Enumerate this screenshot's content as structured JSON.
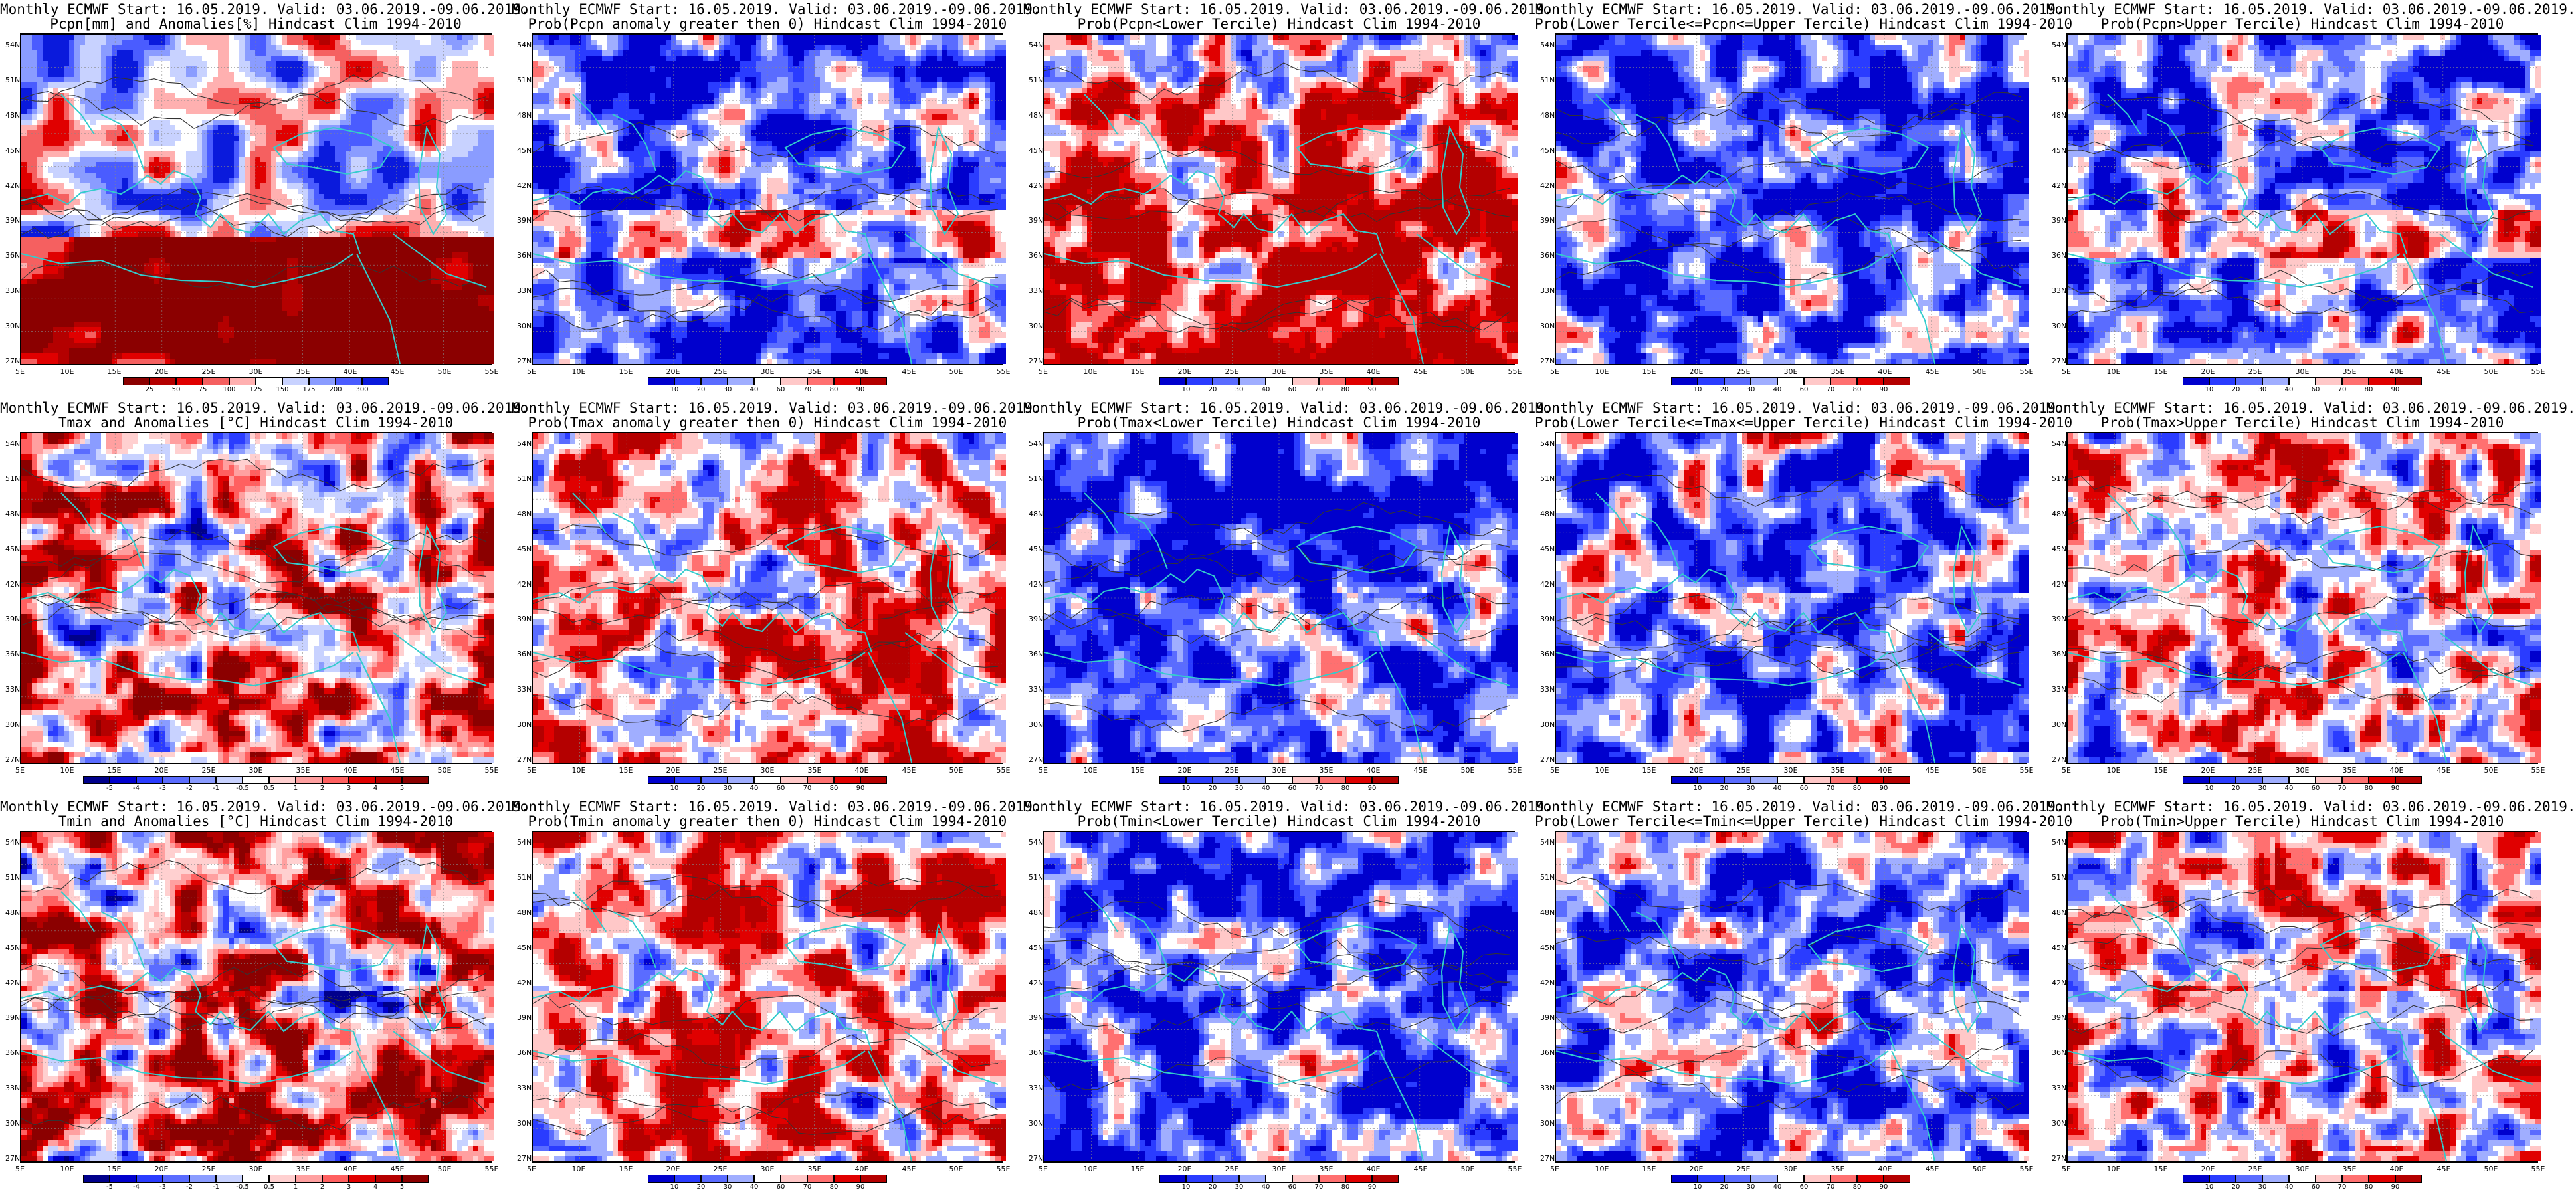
{
  "lat_labels": [
    "54N",
    "51N",
    "48N",
    "45N",
    "42N",
    "39N",
    "36N",
    "33N",
    "30N",
    "27N"
  ],
  "lon_labels": [
    "5E",
    "10E",
    "15E",
    "20E",
    "25E",
    "30E",
    "35E",
    "40E",
    "45E",
    "50E",
    "55E"
  ],
  "colorbars": {
    "pcpn_anom": {
      "ticks": [
        "25",
        "50",
        "75",
        "100",
        "125",
        "150",
        "175",
        "200",
        "300"
      ],
      "colors": [
        "#8b0000",
        "#b40000",
        "#e00000",
        "#f56060",
        "#ffb0b0",
        "#ffffff",
        "#c8d2ff",
        "#8a9cff",
        "#4a5cff",
        "#0a1adc"
      ]
    },
    "temp_anom": {
      "ticks": [
        "-5",
        "-4",
        "-3",
        "-2",
        "-1",
        "-0.5",
        "0.5",
        "1",
        "2",
        "3",
        "4",
        "5"
      ],
      "colors": [
        "#00008b",
        "#0000cd",
        "#2a3cff",
        "#5a6cff",
        "#8a9cff",
        "#c8d2ff",
        "#ffffff",
        "#ffd0d0",
        "#ffa0a0",
        "#ff6060",
        "#e00000",
        "#b40000",
        "#8b0000"
      ]
    },
    "prob": {
      "ticks": [
        "10",
        "20",
        "30",
        "40",
        "60",
        "70",
        "80",
        "90"
      ],
      "colors": [
        "#0000cd",
        "#2a3cff",
        "#5a6cff",
        "#a0aeff",
        "#ffffff",
        "#ffc8c8",
        "#ff7070",
        "#e00000",
        "#b40000"
      ]
    }
  },
  "panels": [
    {
      "title1": "Monthly ECMWF Start: 16.05.2019. Valid: 03.06.2019.-09.06.2019.",
      "title2": "Pcpn[mm] and Anomalies[%] Hindcast Clim 1994-2010",
      "scheme": "pcpn_anom",
      "bias": 0.0
    },
    {
      "title1": "Monthly ECMWF Start: 16.05.2019. Valid: 03.06.2019.-09.06.2019.",
      "title2": "Prob(Pcpn anomaly greater then 0) Hindcast Clim 1994-2010",
      "scheme": "prob",
      "bias": -0.45
    },
    {
      "title1": "Monthly ECMWF Start: 16.05.2019. Valid: 03.06.2019.-09.06.2019.",
      "title2": "Prob(Pcpn<Lower Tercile) Hindcast Clim 1994-2010",
      "scheme": "prob",
      "bias": 0.35
    },
    {
      "title1": "Monthly ECMWF Start: 16.05.2019. Valid: 03.06.2019.-09.06.2019.",
      "title2": "Prob(Lower Tercile<=Pcpn<=Upper Tercile) Hindcast Clim 1994-2010",
      "scheme": "prob",
      "bias": -0.55
    },
    {
      "title1": "Monthly ECMWF Start: 16.05.2019. Valid: 03.06.2019.-09.06.2019.",
      "title2": "Prob(Pcpn>Upper Tercile) Hindcast Clim 1994-2010",
      "scheme": "prob",
      "bias": -0.4
    },
    {
      "title1": "Monthly ECMWF Start: 16.05.2019. Valid: 03.06.2019.-09.06.2019.",
      "title2": "Tmax and Anomalies [°C] Hindcast Clim 1994-2010",
      "scheme": "temp_anom",
      "bias": 0.3
    },
    {
      "title1": "Monthly ECMWF Start: 16.05.2019. Valid: 03.06.2019.-09.06.2019.",
      "title2": "Prob(Tmax anomaly greater then 0) Hindcast Clim 1994-2010",
      "scheme": "prob",
      "bias": 0.3
    },
    {
      "title1": "Monthly ECMWF Start: 16.05.2019. Valid: 03.06.2019.-09.06.2019.",
      "title2": "Prob(Tmax<Lower Tercile) Hindcast Clim 1994-2010",
      "scheme": "prob",
      "bias": -0.5
    },
    {
      "title1": "Monthly ECMWF Start: 16.05.2019. Valid: 03.06.2019.-09.06.2019.",
      "title2": "Prob(Lower Tercile<=Tmax<=Upper Tercile) Hindcast Clim 1994-2010",
      "scheme": "prob",
      "bias": -0.35
    },
    {
      "title1": "Monthly ECMWF Start: 16.05.2019. Valid: 03.06.2019.-09.06.2019.",
      "title2": "Prob(Tmax>Upper Tercile) Hindcast Clim 1994-2010",
      "scheme": "prob",
      "bias": 0.0
    },
    {
      "title1": "Monthly ECMWF Start: 16.05.2019. Valid: 03.06.2019.-09.06.2019.",
      "title2": "Tmin and Anomalies [°C] Hindcast Clim 1994-2010",
      "scheme": "temp_anom",
      "bias": 0.25
    },
    {
      "title1": "Monthly ECMWF Start: 16.05.2019. Valid: 03.06.2019.-09.06.2019.",
      "title2": "Prob(Tmin anomaly greater then 0) Hindcast Clim 1994-2010",
      "scheme": "prob",
      "bias": 0.25
    },
    {
      "title1": "Monthly ECMWF Start: 16.05.2019. Valid: 03.06.2019.-09.06.2019.",
      "title2": "Prob(Tmin<Lower Tercile) Hindcast Clim 1994-2010",
      "scheme": "prob",
      "bias": -0.5
    },
    {
      "title1": "Monthly ECMWF Start: 16.05.2019. Valid: 03.06.2019.-09.06.2019.",
      "title2": "Prob(Lower Tercile<=Tmin<=Upper Tercile) Hindcast Clim 1994-2010",
      "scheme": "prob",
      "bias": -0.4
    },
    {
      "title1": "Monthly ECMWF Start: 16.05.2019. Valid: 03.06.2019.-09.06.2019.",
      "title2": "Prob(Tmin>Upper Tercile) Hindcast Clim 1994-2010",
      "scheme": "prob",
      "bias": 0.05
    }
  ]
}
